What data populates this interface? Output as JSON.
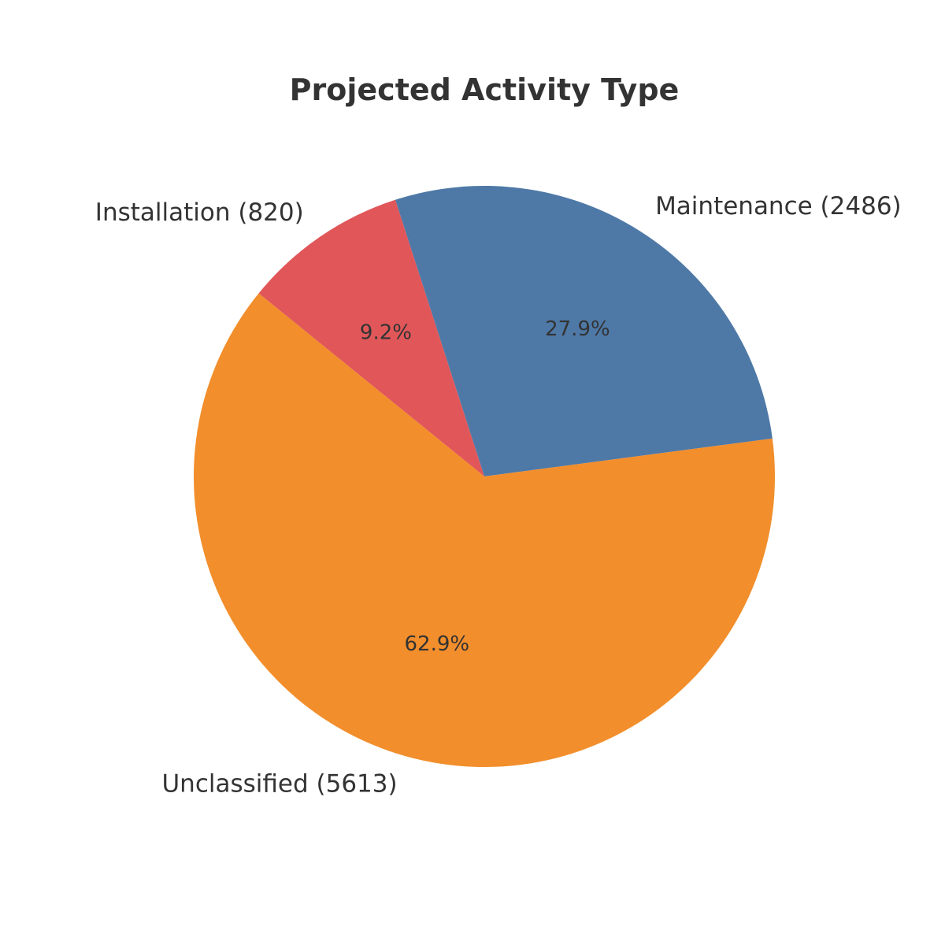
{
  "chart_data": {
    "type": "pie",
    "title": "Projected Activity Type",
    "slices": [
      {
        "label": "Maintenance (2486)",
        "category": "Maintenance",
        "value": 2486,
        "percent_label": "27.9%",
        "color": "#4e79a7"
      },
      {
        "label": "Installation (820)",
        "category": "Installation",
        "value": 820,
        "percent_label": "9.2%",
        "color": "#e15759"
      },
      {
        "label": "Unclassified (5613)",
        "category": "Unclassified",
        "value": 5613,
        "percent_label": "62.9%",
        "color": "#f28e2b"
      }
    ],
    "start_angle_deg": 7.5,
    "direction": "counterclockwise",
    "legend": "none"
  }
}
